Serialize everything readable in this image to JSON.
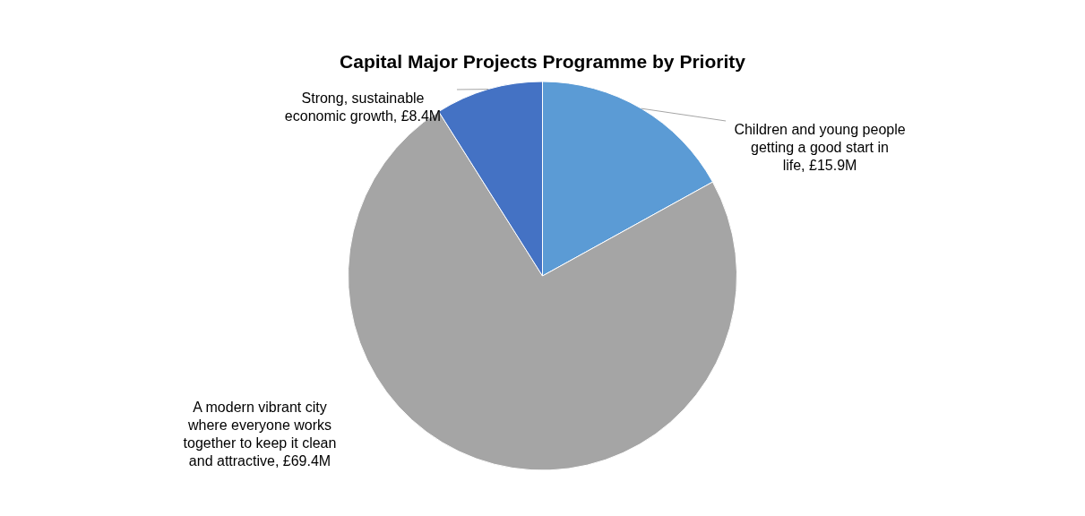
{
  "chart_data": {
    "type": "pie",
    "title": "Capital Major Projects Programme by Priority",
    "categories": [
      "Children and young people getting a good start in life",
      "A modern vibrant city where everyone works together to keep it clean and attractive",
      "Strong, sustainable economic growth"
    ],
    "values": [
      15.9,
      69.4,
      8.4
    ],
    "value_labels": [
      "£15.9M",
      "£69.4M",
      "£8.4M"
    ],
    "colors": [
      "#5b9bd5",
      "#a5a5a5",
      "#4472c4"
    ],
    "legend": false
  }
}
